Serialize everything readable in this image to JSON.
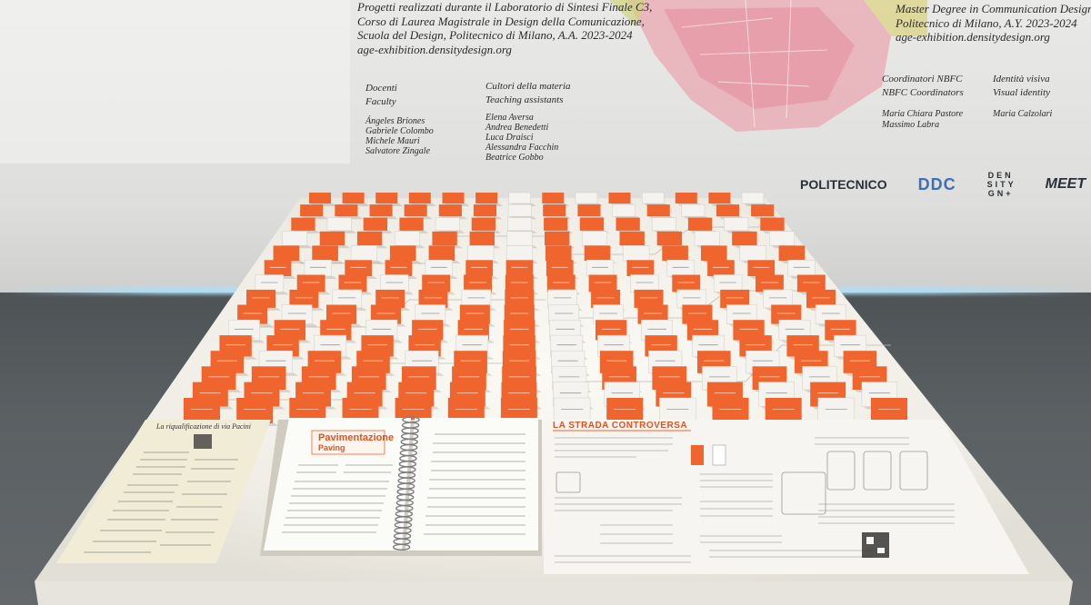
{
  "exhibition": {
    "intro_it": [
      "Progetti realizzati durante il Laboratorio di Sintesi Finale C3,",
      "Corso di Laurea Magistrale in Design della Comunicazione,",
      "Scuola del Design, Politecnico di Milano, A.A. 2023-2024",
      "age-exhibition.densitydesign.org"
    ],
    "intro_en": [
      "Master Degree in Communication Design",
      "Politecnico di Milano, A.Y. 2023-2024",
      "age-exhibition.densitydesign.org"
    ]
  },
  "credits": {
    "faculty_header": [
      "Docenti",
      "Faculty"
    ],
    "faculty": [
      "Ángeles Briones",
      "Gabriele Colombo",
      "Michele Mauri",
      "Salvatore Zingale"
    ],
    "ta_header": [
      "Cultori della materia",
      "Teaching assistants"
    ],
    "ta": [
      "Elena Aversa",
      "Andrea Benedetti",
      "Luca Draisci",
      "Alessandra Facchin",
      "Beatrice Gobbo"
    ],
    "coord_header": [
      "Coordinatori NBFC",
      "NBFC Coordinators"
    ],
    "coord": [
      "Maria Chiara Pastore",
      "Massimo Labra"
    ],
    "identity_header": [
      "Identità visiva",
      "Visual identity"
    ],
    "identity": [
      "Maria Calzolari"
    ]
  },
  "logos": [
    "POLITECNICO",
    "DDC",
    "DEN SITY GN+",
    "MEET"
  ],
  "table": {
    "book_title": "Pavimentazione",
    "book_subtitle": "Paving",
    "panel_title": "LA STRADA CONTROVERSA",
    "left_panel_title": "La riqualificazione di via Pacini"
  },
  "colors": {
    "card_orange": "#f0652e",
    "card_white": "#f4f3ef",
    "table_top": "#f3f1ea"
  }
}
